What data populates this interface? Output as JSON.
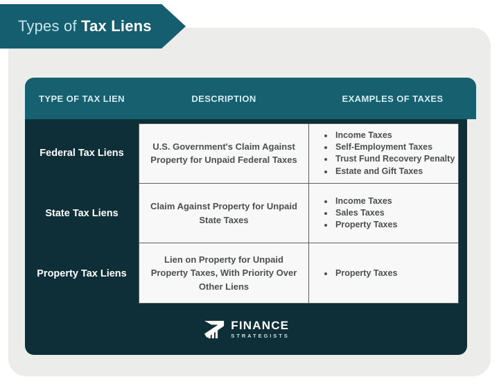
{
  "banner": {
    "title_regular": "Types of ",
    "title_bold": "Tax Liens"
  },
  "table": {
    "headers": [
      "TYPE OF TAX LIEN",
      "DESCRIPTION",
      "EXAMPLES OF TAXES"
    ],
    "rows": [
      {
        "type": "Federal Tax Liens",
        "description": "U.S. Government's Claim Against Property for Unpaid Federal Taxes",
        "examples": [
          "Income Taxes",
          "Self-Employment Taxes",
          "Trust Fund Recovery Penalty",
          "Estate and Gift Taxes"
        ]
      },
      {
        "type": "State Tax Liens",
        "description": "Claim Against Property for Unpaid State Taxes",
        "examples": [
          "Income Taxes",
          "Sales Taxes",
          "Property Taxes"
        ]
      },
      {
        "type": "Property Tax Liens",
        "description": "Lien on Property for Unpaid Property Taxes, With Priority Over Other Liens",
        "examples": [
          "Property Taxes"
        ]
      }
    ]
  },
  "footer": {
    "logo_primary": "FINANCE",
    "logo_secondary": "STRATEGISTS"
  },
  "colors": {
    "ribbon_teal": "#145e70",
    "header_teal": "#17606f",
    "table_dark": "#0e2f38",
    "card_gray": "#ecedeb",
    "cell_white": "#f7f8f7",
    "cell_text": "#4d4f4f",
    "header_text": "#d7ecf1"
  }
}
